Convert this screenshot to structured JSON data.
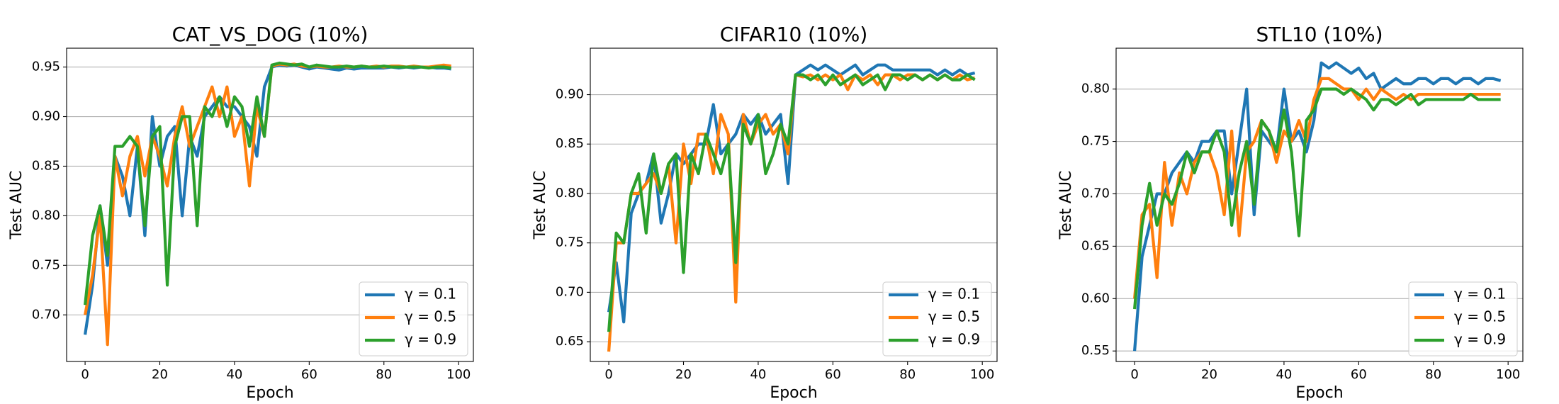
{
  "chart_data": [
    {
      "type": "line",
      "title": "CAT_VS_DOG (10%)",
      "xlabel": "Epoch",
      "ylabel": "Test AUC",
      "grid": true,
      "legend": "lower right",
      "x": [
        0,
        2,
        4,
        6,
        8,
        10,
        12,
        14,
        16,
        18,
        20,
        22,
        24,
        26,
        28,
        30,
        32,
        34,
        36,
        38,
        40,
        42,
        44,
        46,
        48,
        50,
        52,
        54,
        56,
        58,
        60,
        62,
        64,
        66,
        68,
        70,
        72,
        74,
        76,
        78,
        80,
        82,
        84,
        86,
        88,
        90,
        92,
        94,
        96,
        98
      ],
      "xlim": [
        -4.95,
        103.95
      ],
      "xticks": [
        0,
        20,
        40,
        60,
        80,
        100
      ],
      "ylim": [
        0.653,
        0.969
      ],
      "yticks": [
        {
          "value": 0.7,
          "label": "0.70"
        },
        {
          "value": 0.75,
          "label": "0.75"
        },
        {
          "value": 0.8,
          "label": "0.80"
        },
        {
          "value": 0.85,
          "label": "0.85"
        },
        {
          "value": 0.9,
          "label": "0.90"
        },
        {
          "value": 0.95,
          "label": "0.95"
        }
      ],
      "series": [
        {
          "name": "γ = 0.1",
          "color": "#1f77b4",
          "values": [
            0.68,
            0.73,
            0.81,
            0.75,
            0.86,
            0.84,
            0.8,
            0.87,
            0.78,
            0.9,
            0.85,
            0.88,
            0.89,
            0.8,
            0.88,
            0.86,
            0.9,
            0.91,
            0.92,
            0.91,
            0.91,
            0.9,
            0.89,
            0.86,
            0.93,
            0.95,
            0.952,
            0.951,
            0.952,
            0.95,
            0.948,
            0.95,
            0.949,
            0.948,
            0.947,
            0.949,
            0.948,
            0.949,
            0.949,
            0.949,
            0.949,
            0.95,
            0.949,
            0.95,
            0.949,
            0.95,
            0.95,
            0.949,
            0.949,
            0.948
          ]
        },
        {
          "name": "γ = 0.5",
          "color": "#ff7f0e",
          "values": [
            0.7,
            0.74,
            0.8,
            0.67,
            0.86,
            0.82,
            0.86,
            0.88,
            0.84,
            0.88,
            0.86,
            0.83,
            0.88,
            0.91,
            0.87,
            0.89,
            0.91,
            0.93,
            0.9,
            0.93,
            0.88,
            0.9,
            0.83,
            0.91,
            0.88,
            0.951,
            0.953,
            0.952,
            0.953,
            0.951,
            0.95,
            0.951,
            0.95,
            0.95,
            0.951,
            0.95,
            0.95,
            0.951,
            0.95,
            0.951,
            0.95,
            0.951,
            0.951,
            0.95,
            0.951,
            0.95,
            0.95,
            0.951,
            0.952,
            0.951
          ]
        },
        {
          "name": "γ = 0.9",
          "color": "#2ca02c",
          "values": [
            0.71,
            0.78,
            0.81,
            0.76,
            0.87,
            0.87,
            0.88,
            0.87,
            0.79,
            0.88,
            0.89,
            0.73,
            0.87,
            0.9,
            0.9,
            0.79,
            0.91,
            0.9,
            0.92,
            0.89,
            0.92,
            0.91,
            0.87,
            0.92,
            0.88,
            0.952,
            0.954,
            0.953,
            0.952,
            0.953,
            0.95,
            0.952,
            0.951,
            0.95,
            0.95,
            0.951,
            0.95,
            0.951,
            0.95,
            0.95,
            0.951,
            0.95,
            0.95,
            0.95,
            0.95,
            0.95,
            0.949,
            0.95,
            0.95,
            0.949
          ]
        }
      ]
    },
    {
      "type": "line",
      "title": "CIFAR10 (10%)",
      "xlabel": "Epoch",
      "ylabel": "Test AUC",
      "grid": true,
      "legend": "lower right",
      "x": [
        0,
        2,
        4,
        6,
        8,
        10,
        12,
        14,
        16,
        18,
        20,
        22,
        24,
        26,
        28,
        30,
        32,
        34,
        36,
        38,
        40,
        42,
        44,
        46,
        48,
        50,
        52,
        54,
        56,
        58,
        60,
        62,
        64,
        66,
        68,
        70,
        72,
        74,
        76,
        78,
        80,
        82,
        84,
        86,
        88,
        90,
        92,
        94,
        96,
        98
      ],
      "xlim": [
        -4.95,
        103.95
      ],
      "xticks": [
        0,
        20,
        40,
        60,
        80,
        100
      ],
      "ylim": [
        0.63,
        0.947
      ],
      "yticks": [
        {
          "value": 0.65,
          "label": "0.65"
        },
        {
          "value": 0.7,
          "label": "0.70"
        },
        {
          "value": 0.75,
          "label": "0.75"
        },
        {
          "value": 0.8,
          "label": "0.80"
        },
        {
          "value": 0.85,
          "label": "0.85"
        },
        {
          "value": 0.9,
          "label": "0.90"
        }
      ],
      "series": [
        {
          "name": "γ = 0.1",
          "color": "#1f77b4",
          "values": [
            0.68,
            0.73,
            0.67,
            0.78,
            0.8,
            0.81,
            0.84,
            0.77,
            0.8,
            0.84,
            0.83,
            0.84,
            0.85,
            0.85,
            0.89,
            0.84,
            0.85,
            0.86,
            0.88,
            0.87,
            0.88,
            0.86,
            0.87,
            0.88,
            0.81,
            0.92,
            0.925,
            0.93,
            0.925,
            0.93,
            0.925,
            0.92,
            0.925,
            0.93,
            0.92,
            0.925,
            0.93,
            0.93,
            0.925,
            0.925,
            0.925,
            0.925,
            0.925,
            0.925,
            0.92,
            0.925,
            0.92,
            0.925,
            0.92,
            0.922
          ]
        },
        {
          "name": "γ = 0.5",
          "color": "#ff7f0e",
          "values": [
            0.64,
            0.75,
            0.75,
            0.8,
            0.8,
            0.81,
            0.82,
            0.8,
            0.83,
            0.75,
            0.85,
            0.81,
            0.86,
            0.86,
            0.82,
            0.88,
            0.86,
            0.69,
            0.88,
            0.85,
            0.87,
            0.88,
            0.86,
            0.87,
            0.84,
            0.92,
            0.918,
            0.92,
            0.915,
            0.92,
            0.915,
            0.92,
            0.905,
            0.92,
            0.915,
            0.92,
            0.91,
            0.92,
            0.92,
            0.915,
            0.92,
            0.92,
            0.915,
            0.92,
            0.915,
            0.92,
            0.915,
            0.92,
            0.915,
            0.917
          ]
        },
        {
          "name": "γ = 0.9",
          "color": "#2ca02c",
          "values": [
            0.66,
            0.76,
            0.75,
            0.8,
            0.82,
            0.76,
            0.84,
            0.8,
            0.83,
            0.84,
            0.72,
            0.84,
            0.82,
            0.86,
            0.84,
            0.82,
            0.85,
            0.73,
            0.87,
            0.85,
            0.88,
            0.82,
            0.84,
            0.87,
            0.85,
            0.92,
            0.92,
            0.915,
            0.92,
            0.91,
            0.92,
            0.91,
            0.915,
            0.92,
            0.91,
            0.915,
            0.92,
            0.905,
            0.92,
            0.92,
            0.915,
            0.92,
            0.915,
            0.92,
            0.915,
            0.92,
            0.915,
            0.915,
            0.92,
            0.915
          ]
        }
      ]
    },
    {
      "type": "line",
      "title": "STL10 (10%)",
      "xlabel": "Epoch",
      "ylabel": "Test AUC",
      "grid": true,
      "legend": "lower right",
      "x": [
        0,
        2,
        4,
        6,
        8,
        10,
        12,
        14,
        16,
        18,
        20,
        22,
        24,
        26,
        28,
        30,
        32,
        34,
        36,
        38,
        40,
        42,
        44,
        46,
        48,
        50,
        52,
        54,
        56,
        58,
        60,
        62,
        64,
        66,
        68,
        70,
        72,
        74,
        76,
        78,
        80,
        82,
        84,
        86,
        88,
        90,
        92,
        94,
        96,
        98
      ],
      "xlim": [
        -4.95,
        103.95
      ],
      "xticks": [
        0,
        20,
        40,
        60,
        80,
        100
      ],
      "ylim": [
        0.54,
        0.839
      ],
      "yticks": [
        {
          "value": 0.55,
          "label": "0.55"
        },
        {
          "value": 0.6,
          "label": "0.60"
        },
        {
          "value": 0.65,
          "label": "0.65"
        },
        {
          "value": 0.7,
          "label": "0.70"
        },
        {
          "value": 0.75,
          "label": "0.75"
        },
        {
          "value": 0.8,
          "label": "0.80"
        }
      ],
      "series": [
        {
          "name": "γ = 0.1",
          "color": "#1f77b4",
          "values": [
            0.55,
            0.64,
            0.67,
            0.7,
            0.7,
            0.72,
            0.73,
            0.74,
            0.73,
            0.75,
            0.75,
            0.76,
            0.76,
            0.7,
            0.75,
            0.8,
            0.68,
            0.76,
            0.75,
            0.74,
            0.8,
            0.75,
            0.76,
            0.74,
            0.77,
            0.825,
            0.82,
            0.825,
            0.82,
            0.815,
            0.82,
            0.81,
            0.815,
            0.8,
            0.805,
            0.81,
            0.805,
            0.805,
            0.81,
            0.81,
            0.805,
            0.81,
            0.81,
            0.805,
            0.81,
            0.81,
            0.805,
            0.81,
            0.81,
            0.808
          ]
        },
        {
          "name": "γ = 0.5",
          "color": "#ff7f0e",
          "values": [
            0.6,
            0.68,
            0.69,
            0.62,
            0.73,
            0.67,
            0.72,
            0.7,
            0.73,
            0.74,
            0.74,
            0.72,
            0.68,
            0.76,
            0.66,
            0.74,
            0.75,
            0.77,
            0.76,
            0.73,
            0.76,
            0.75,
            0.77,
            0.75,
            0.79,
            0.81,
            0.81,
            0.805,
            0.8,
            0.8,
            0.79,
            0.8,
            0.79,
            0.8,
            0.795,
            0.79,
            0.795,
            0.79,
            0.795,
            0.795,
            0.795,
            0.795,
            0.795,
            0.795,
            0.795,
            0.795,
            0.795,
            0.795,
            0.795,
            0.795
          ]
        },
        {
          "name": "γ = 0.9",
          "color": "#2ca02c",
          "values": [
            0.59,
            0.67,
            0.71,
            0.67,
            0.7,
            0.69,
            0.71,
            0.74,
            0.72,
            0.74,
            0.74,
            0.76,
            0.74,
            0.67,
            0.72,
            0.75,
            0.69,
            0.77,
            0.76,
            0.74,
            0.78,
            0.74,
            0.66,
            0.77,
            0.78,
            0.8,
            0.8,
            0.8,
            0.795,
            0.8,
            0.795,
            0.79,
            0.78,
            0.79,
            0.79,
            0.785,
            0.79,
            0.795,
            0.785,
            0.79,
            0.79,
            0.79,
            0.79,
            0.79,
            0.79,
            0.795,
            0.79,
            0.79,
            0.79,
            0.79
          ]
        }
      ]
    }
  ]
}
